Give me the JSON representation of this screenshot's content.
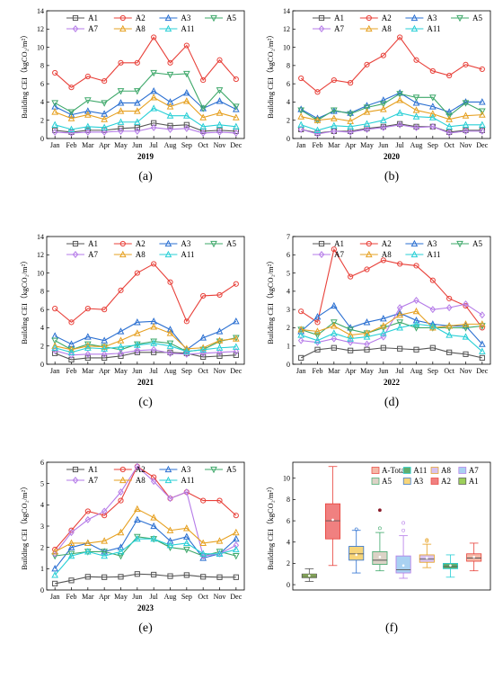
{
  "colors": {
    "A1": "#555555",
    "A2": "#e8413a",
    "A3": "#2a6fd1",
    "A5": "#3ea86a",
    "A7": "#b57be8",
    "A8": "#e6a020",
    "A11": "#27cfd6"
  },
  "chart_data": [
    {
      "type": "line",
      "panel": "(a)",
      "xlabel": "2019",
      "ylabel": "Building CEI（kgCO₂/m²）",
      "ylim": [
        0,
        14
      ],
      "yticks": [
        0,
        2,
        4,
        6,
        8,
        10,
        12,
        14
      ],
      "categories": [
        "Jan",
        "Feb",
        "Mar",
        "Apr",
        "May",
        "Jun",
        "Jul",
        "Aug",
        "Sep",
        "Oct",
        "Nov",
        "Dec"
      ],
      "legend": [
        "A1",
        "A2",
        "A3",
        "A5",
        "A7",
        "A8",
        "A11"
      ],
      "series": [
        {
          "name": "A1",
          "values": [
            0.9,
            0.7,
            0.9,
            0.9,
            1.1,
            1.2,
            1.7,
            1.4,
            1.5,
            0.8,
            0.9,
            0.8
          ]
        },
        {
          "name": "A2",
          "values": [
            7.2,
            5.6,
            6.8,
            6.3,
            8.3,
            8.3,
            11.1,
            8.3,
            10.2,
            6.4,
            8.6,
            6.5
          ]
        },
        {
          "name": "A3",
          "values": [
            3.5,
            2.6,
            3.0,
            2.7,
            3.9,
            3.9,
            5.2,
            4.0,
            5.0,
            3.3,
            4.1,
            3.2
          ]
        },
        {
          "name": "A5",
          "values": [
            3.9,
            2.9,
            4.2,
            3.9,
            5.2,
            5.2,
            7.2,
            7.0,
            7.1,
            3.3,
            5.3,
            3.5
          ]
        },
        {
          "name": "A7",
          "values": [
            0.7,
            0.6,
            0.7,
            0.7,
            0.8,
            0.8,
            1.2,
            1.0,
            1.1,
            0.6,
            0.7,
            0.6
          ]
        },
        {
          "name": "A8",
          "values": [
            2.9,
            2.2,
            2.6,
            2.1,
            3.0,
            3.0,
            4.5,
            3.5,
            4.1,
            2.3,
            2.8,
            2.3
          ]
        },
        {
          "name": "A11",
          "values": [
            1.5,
            1.0,
            1.3,
            1.2,
            1.8,
            1.8,
            3.3,
            2.5,
            2.5,
            1.3,
            1.5,
            1.3
          ]
        }
      ]
    },
    {
      "type": "line",
      "panel": "(b)",
      "xlabel": "2020",
      "ylabel": "Building CEI（kgCO₂/m²）",
      "ylim": [
        0,
        14
      ],
      "yticks": [
        0,
        2,
        4,
        6,
        8,
        10,
        12,
        14
      ],
      "categories": [
        "Jan",
        "Feb",
        "Mar",
        "Apr",
        "May",
        "Jun",
        "Jul",
        "Aug",
        "Sep",
        "Oct",
        "Nov",
        "Dec"
      ],
      "legend": [
        "A1",
        "A2",
        "A3",
        "A5",
        "A7",
        "A8",
        "A11"
      ],
      "series": [
        {
          "name": "A1",
          "values": [
            1.0,
            0.6,
            0.8,
            0.8,
            1.1,
            1.3,
            1.6,
            1.3,
            1.3,
            0.7,
            0.9,
            0.9
          ]
        },
        {
          "name": "A2",
          "values": [
            6.6,
            5.1,
            6.4,
            6.1,
            8.1,
            9.1,
            11.1,
            8.6,
            7.4,
            6.9,
            8.1,
            7.6
          ]
        },
        {
          "name": "A3",
          "values": [
            3.2,
            2.2,
            3.0,
            2.8,
            3.6,
            4.2,
            5.0,
            3.9,
            3.5,
            2.9,
            4.0,
            4.0
          ]
        },
        {
          "name": "A5",
          "values": [
            3.1,
            2.0,
            3.1,
            2.7,
            3.4,
            3.8,
            4.9,
            4.5,
            4.5,
            2.5,
            3.9,
            3.0
          ]
        },
        {
          "name": "A7",
          "values": [
            1.0,
            0.5,
            0.8,
            0.7,
            1.0,
            1.2,
            1.5,
            1.2,
            1.3,
            0.6,
            0.8,
            0.8
          ]
        },
        {
          "name": "A8",
          "values": [
            2.4,
            2.0,
            2.2,
            1.9,
            2.9,
            3.2,
            4.2,
            3.1,
            2.7,
            2.1,
            2.5,
            2.6
          ]
        },
        {
          "name": "A11",
          "values": [
            1.5,
            0.9,
            1.4,
            1.3,
            1.6,
            2.0,
            2.8,
            2.4,
            2.3,
            1.3,
            1.5,
            1.5
          ]
        }
      ]
    },
    {
      "type": "line",
      "panel": "(c)",
      "xlabel": "2021",
      "ylabel": "Building CEI（kgCO₂/m²）",
      "ylim": [
        0,
        14
      ],
      "yticks": [
        0,
        2,
        4,
        6,
        8,
        10,
        12,
        14
      ],
      "categories": [
        "Jan",
        "Feb",
        "Mar",
        "Apr",
        "May",
        "Jun",
        "Jul",
        "Aug",
        "Sep",
        "Oct",
        "Nov",
        "Dec"
      ],
      "legend": [
        "A1",
        "A2",
        "A3",
        "A5",
        "A7",
        "A8",
        "A11"
      ],
      "series": [
        {
          "name": "A1",
          "values": [
            1.2,
            0.5,
            0.7,
            0.7,
            0.9,
            1.3,
            1.3,
            1.3,
            1.2,
            0.8,
            0.9,
            1.0
          ]
        },
        {
          "name": "A2",
          "values": [
            6.1,
            4.6,
            6.1,
            6.0,
            8.1,
            10.0,
            11.0,
            9.0,
            4.7,
            7.5,
            7.6,
            8.8
          ]
        },
        {
          "name": "A3",
          "values": [
            3.1,
            2.2,
            3.0,
            2.6,
            3.6,
            4.6,
            4.7,
            3.8,
            1.6,
            2.9,
            3.6,
            4.7
          ]
        },
        {
          "name": "A5",
          "values": [
            2.6,
            1.6,
            2.2,
            1.9,
            1.6,
            2.2,
            2.5,
            2.3,
            1.4,
            1.6,
            2.5,
            2.9
          ]
        },
        {
          "name": "A7",
          "values": [
            1.5,
            1.0,
            1.1,
            1.1,
            1.2,
            1.5,
            1.6,
            1.2,
            1.1,
            1.2,
            1.3,
            1.4
          ]
        },
        {
          "name": "A8",
          "values": [
            2.0,
            1.6,
            2.0,
            1.9,
            2.6,
            3.4,
            4.1,
            3.4,
            1.7,
            1.8,
            2.6,
            2.8
          ]
        },
        {
          "name": "A11",
          "values": [
            1.8,
            1.3,
            1.8,
            1.7,
            1.9,
            2.1,
            2.3,
            2.0,
            1.4,
            1.6,
            1.8,
            1.9
          ]
        }
      ]
    },
    {
      "type": "line",
      "panel": "(d)",
      "xlabel": "2022",
      "ylabel": "Building CEI（kgCO₂/m²）",
      "ylim": [
        0,
        7
      ],
      "yticks": [
        0,
        1,
        2,
        3,
        4,
        5,
        6,
        7
      ],
      "categories": [
        "Jan",
        "Feb",
        "Mar",
        "Apr",
        "May",
        "Jun",
        "Jul",
        "Aug",
        "Sep",
        "Oct",
        "Nov",
        "Dec"
      ],
      "legend": [
        "A1",
        "A2",
        "A3",
        "A5",
        "A7",
        "A8",
        "A11"
      ],
      "series": [
        {
          "name": "A1",
          "values": [
            0.35,
            0.8,
            0.9,
            0.75,
            0.8,
            0.9,
            0.85,
            0.8,
            0.9,
            0.65,
            0.55,
            0.35
          ]
        },
        {
          "name": "A2",
          "values": [
            2.9,
            2.3,
            6.3,
            4.8,
            5.2,
            5.7,
            5.5,
            5.4,
            4.6,
            3.6,
            3.2,
            2.0
          ]
        },
        {
          "name": "A3",
          "values": [
            1.8,
            2.6,
            3.2,
            2.0,
            2.3,
            2.5,
            2.8,
            2.4,
            2.2,
            2.1,
            2.1,
            1.1
          ]
        },
        {
          "name": "A5",
          "values": [
            1.9,
            1.6,
            2.3,
            1.9,
            1.7,
            2.0,
            2.3,
            2.0,
            2.0,
            2.0,
            2.0,
            2.1
          ]
        },
        {
          "name": "A7",
          "values": [
            1.3,
            1.2,
            1.4,
            1.2,
            1.1,
            1.5,
            3.1,
            3.5,
            3.0,
            3.1,
            3.3,
            2.7
          ]
        },
        {
          "name": "A8",
          "values": [
            1.9,
            1.8,
            2.1,
            1.6,
            1.7,
            2.1,
            2.7,
            2.9,
            2.0,
            2.1,
            2.2,
            2.2
          ]
        },
        {
          "name": "A11",
          "values": [
            1.6,
            1.3,
            1.7,
            1.4,
            1.5,
            1.7,
            2.0,
            2.2,
            2.1,
            1.6,
            1.5,
            0.7
          ]
        }
      ]
    },
    {
      "type": "line",
      "panel": "(e)",
      "xlabel": "2023",
      "ylabel": "Building CEI（kgCO₂/m²）",
      "ylim": [
        0,
        6
      ],
      "yticks": [
        0,
        1,
        2,
        3,
        4,
        5,
        6
      ],
      "categories": [
        "Jan",
        "Feb",
        "Mar",
        "Apr",
        "May",
        "Jun",
        "Jul",
        "Aug",
        "Sep",
        "Oct",
        "Nov",
        "Dec"
      ],
      "legend": [
        "A1",
        "A2",
        "A3",
        "A5",
        "A7",
        "A8",
        "A11"
      ],
      "series": [
        {
          "name": "A1",
          "values": [
            0.3,
            0.45,
            0.62,
            0.6,
            0.62,
            0.75,
            0.72,
            0.65,
            0.7,
            0.62,
            0.6,
            0.6
          ]
        },
        {
          "name": "A2",
          "values": [
            1.9,
            2.8,
            3.7,
            3.5,
            4.2,
            5.8,
            5.3,
            4.3,
            4.6,
            4.2,
            4.2,
            3.5
          ]
        },
        {
          "name": "A3",
          "values": [
            1.0,
            2.0,
            2.2,
            1.8,
            2.0,
            3.3,
            3.0,
            2.3,
            2.5,
            1.5,
            1.7,
            2.4
          ]
        },
        {
          "name": "A5",
          "values": [
            1.6,
            1.7,
            1.8,
            1.8,
            1.6,
            2.5,
            2.4,
            2.0,
            1.9,
            1.6,
            1.8,
            1.6
          ]
        },
        {
          "name": "A7",
          "values": [
            1.7,
            2.7,
            3.3,
            3.7,
            4.6,
            5.8,
            5.1,
            4.3,
            4.6,
            1.6,
            1.7,
            2.1
          ]
        },
        {
          "name": "A8",
          "values": [
            1.8,
            2.2,
            2.2,
            2.3,
            2.7,
            3.8,
            3.4,
            2.8,
            2.9,
            2.2,
            2.3,
            2.7
          ]
        },
        {
          "name": "A11",
          "values": [
            0.7,
            1.6,
            1.8,
            1.6,
            1.8,
            2.4,
            2.4,
            2.1,
            2.2,
            1.7,
            1.7,
            1.9
          ]
        }
      ]
    },
    {
      "type": "box",
      "panel": "(f)",
      "ylabel": "Building CEI（kgCO₂/m²）",
      "ylim": [
        -0.5,
        11.5
      ],
      "yticks": [
        0,
        2,
        4,
        6,
        8,
        10
      ],
      "legend": [
        "A-Total",
        "A11",
        "A8",
        "A7",
        "A5",
        "A3",
        "A2",
        "A1"
      ],
      "boxes": [
        {
          "name": "A1",
          "whisker_low": 0.3,
          "q1": 0.65,
          "median": 0.8,
          "mean": 0.85,
          "q3": 1.0,
          "whisker_high": 1.5,
          "outliers": []
        },
        {
          "name": "A2",
          "whisker_low": 1.8,
          "q1": 4.3,
          "median": 6.0,
          "mean": 6.1,
          "q3": 7.6,
          "whisker_high": 11.1,
          "outliers": []
        },
        {
          "name": "A3",
          "whisker_low": 1.1,
          "q1": 2.3,
          "median": 2.9,
          "mean": 2.8,
          "q3": 3.6,
          "whisker_high": 5.1,
          "outliers": [
            5.2
          ]
        },
        {
          "name": "A5",
          "whisker_low": 1.3,
          "q1": 1.9,
          "median": 2.3,
          "mean": 2.6,
          "q3": 3.1,
          "whisker_high": 4.9,
          "outliers": [
            5.3,
            7.0
          ]
        },
        {
          "name": "A7",
          "whisker_low": 0.6,
          "q1": 1.1,
          "median": 1.4,
          "mean": 1.8,
          "q3": 2.7,
          "whisker_high": 4.6,
          "outliers": [
            5.1,
            5.8
          ]
        },
        {
          "name": "A8",
          "whisker_low": 1.6,
          "q1": 2.1,
          "median": 2.4,
          "mean": 2.5,
          "q3": 2.8,
          "whisker_high": 3.8,
          "outliers": [
            4.1,
            4.2
          ]
        },
        {
          "name": "A11",
          "whisker_low": 0.7,
          "q1": 1.5,
          "median": 1.7,
          "mean": 1.8,
          "q3": 2.0,
          "whisker_high": 2.8,
          "outliers": []
        },
        {
          "name": "A-Total",
          "whisker_low": 1.3,
          "q1": 2.2,
          "median": 2.5,
          "mean": 2.6,
          "q3": 2.9,
          "whisker_high": 3.9,
          "outliers": []
        }
      ]
    }
  ]
}
